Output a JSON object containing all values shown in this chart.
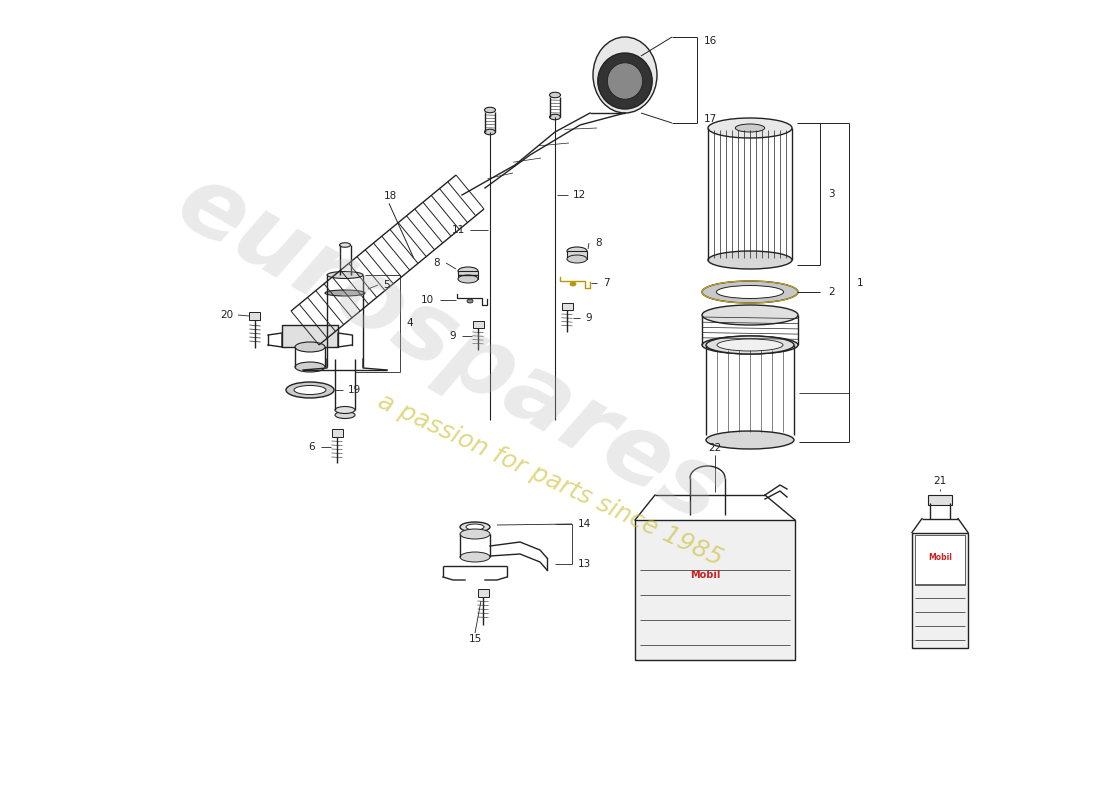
{
  "background_color": "#ffffff",
  "line_color": "#222222",
  "watermark1": "eurospares",
  "watermark2": "a passion for parts since 1985",
  "fig_w": 11.0,
  "fig_h": 8.0,
  "dpi": 100,
  "xlim": [
    0,
    11
  ],
  "ylim": [
    0,
    8
  ],
  "watermark1_color": "#bbbbbb",
  "watermark1_alpha": 0.3,
  "watermark2_color": "#c8b820",
  "watermark2_alpha": 0.55,
  "label_fontsize": 7.5
}
